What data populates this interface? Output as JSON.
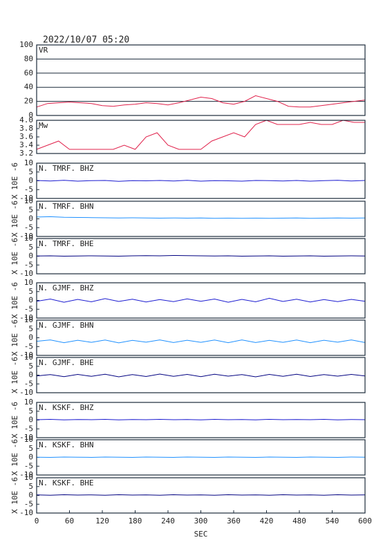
{
  "title": "2022/10/07  05:20",
  "y_unit_label": "X 10E -6",
  "chart_data": [
    {
      "type": "line",
      "title": "VR",
      "xlim": [
        0,
        600
      ],
      "ylim": [
        0,
        100
      ],
      "yticks": [
        0,
        20,
        40,
        60,
        80,
        100
      ],
      "grid": true,
      "x": [
        0,
        20,
        40,
        60,
        80,
        100,
        120,
        140,
        160,
        180,
        200,
        220,
        240,
        260,
        280,
        300,
        320,
        340,
        360,
        380,
        400,
        420,
        440,
        460,
        480,
        500,
        520,
        540,
        560,
        580,
        600
      ],
      "series": [
        {
          "name": "VR",
          "color": "#e0204a",
          "values": [
            12,
            17,
            18,
            19,
            18,
            17,
            14,
            13,
            15,
            16,
            18,
            17,
            15,
            18,
            22,
            26,
            24,
            18,
            16,
            20,
            28,
            24,
            20,
            13,
            12,
            12,
            14,
            16,
            18,
            20,
            22
          ]
        }
      ]
    },
    {
      "type": "line",
      "title": "Mw",
      "xlim": [
        0,
        600
      ],
      "ylim": [
        3.2,
        4.0
      ],
      "grid": false,
      "yticks": [
        {
          "value": 3.2,
          "label": "3.2"
        },
        {
          "value": 3.4,
          "label": "3.4"
        },
        {
          "value": 3.6,
          "label": "3.6"
        },
        {
          "value": 3.8,
          "label": "3.8"
        },
        {
          "value": 4,
          "label": "4.0"
        }
      ],
      "x": [
        0,
        20,
        40,
        60,
        80,
        100,
        120,
        140,
        160,
        180,
        200,
        220,
        240,
        260,
        280,
        300,
        320,
        340,
        360,
        380,
        400,
        420,
        440,
        460,
        480,
        500,
        520,
        540,
        560,
        580,
        600
      ],
      "series": [
        {
          "name": "Mw",
          "color": "#e0204a",
          "values": [
            3.3,
            3.4,
            3.5,
            3.3,
            3.3,
            3.3,
            3.3,
            3.3,
            3.4,
            3.3,
            3.6,
            3.7,
            3.4,
            3.3,
            3.3,
            3.3,
            3.5,
            3.6,
            3.7,
            3.6,
            3.9,
            4.0,
            3.9,
            3.9,
            3.9,
            3.95,
            3.9,
            3.9,
            4.0,
            3.95,
            3.95
          ]
        }
      ]
    },
    {
      "type": "line",
      "title": "N. TMRF. BHZ",
      "xlim": [
        0,
        600
      ],
      "ylim": [
        -10,
        10
      ],
      "yticks": [
        -10,
        -5,
        0,
        5,
        10
      ],
      "grid": false,
      "x": [
        0,
        25,
        50,
        75,
        100,
        125,
        150,
        175,
        200,
        225,
        250,
        275,
        300,
        325,
        350,
        375,
        400,
        425,
        450,
        475,
        500,
        525,
        550,
        575,
        600
      ],
      "series": [
        {
          "name": "N. TMRF. BHZ",
          "color": "#1a1ad0",
          "values": [
            0.2,
            -0.1,
            0.3,
            -0.2,
            0.1,
            0.2,
            -0.3,
            0.1,
            0,
            0.2,
            -0.1,
            0.3,
            -0.2,
            0.1,
            0,
            -0.2,
            0.2,
            0.1,
            -0.1,
            0.2,
            -0.2,
            0.1,
            0.3,
            -0.1,
            0.2
          ]
        }
      ]
    },
    {
      "type": "line",
      "title": "N. TMRF. BHN",
      "xlim": [
        0,
        600
      ],
      "ylim": [
        -10,
        10
      ],
      "yticks": [
        -10,
        -5,
        0,
        5,
        10
      ],
      "grid": false,
      "x": [
        0,
        25,
        50,
        75,
        100,
        125,
        150,
        175,
        200,
        225,
        250,
        275,
        300,
        325,
        350,
        375,
        400,
        425,
        450,
        475,
        500,
        525,
        550,
        575,
        600
      ],
      "series": [
        {
          "name": "N. TMRF. BHN",
          "color": "#1e90ff",
          "values": [
            1.0,
            1.2,
            0.9,
            0.8,
            0.7,
            0.6,
            0.5,
            0.6,
            0.5,
            0.4,
            0.5,
            0.4,
            0.5,
            0.3,
            0.4,
            0.3,
            0.4,
            0.3,
            0.4,
            0.5,
            0.3,
            0.4,
            0.5,
            0.4,
            0.5
          ]
        }
      ]
    },
    {
      "type": "line",
      "title": "N. TMRF. BHE",
      "xlim": [
        0,
        600
      ],
      "ylim": [
        -10,
        10
      ],
      "yticks": [
        -10,
        -5,
        0,
        5,
        10
      ],
      "grid": false,
      "x": [
        0,
        25,
        50,
        75,
        100,
        125,
        150,
        175,
        200,
        225,
        250,
        275,
        300,
        325,
        350,
        375,
        400,
        425,
        450,
        475,
        500,
        525,
        550,
        575,
        600
      ],
      "series": [
        {
          "name": "N. TMRF. BHE",
          "color": "#000080",
          "values": [
            0.1,
            0.2,
            0,
            0.1,
            0.2,
            0.1,
            0,
            0.2,
            0.3,
            0.2,
            0.4,
            0.3,
            0.2,
            0.1,
            0.2,
            0,
            0.1,
            0.2,
            0,
            0.1,
            0.2,
            0,
            0.1,
            0.2,
            0.1
          ]
        }
      ]
    },
    {
      "type": "line",
      "title": "N. GJMF. BHZ",
      "xlim": [
        0,
        600
      ],
      "ylim": [
        -10,
        10
      ],
      "yticks": [
        -10,
        -5,
        0,
        5,
        10
      ],
      "grid": false,
      "x": [
        0,
        25,
        50,
        75,
        100,
        125,
        150,
        175,
        200,
        225,
        250,
        275,
        300,
        325,
        350,
        375,
        400,
        425,
        450,
        475,
        500,
        525,
        550,
        575,
        600
      ],
      "series": [
        {
          "name": "N. GJMF. BHZ",
          "color": "#1a1ad0",
          "values": [
            -0.5,
            0.8,
            -1.0,
            0.6,
            -0.8,
            1.0,
            -0.6,
            0.7,
            -0.9,
            0.5,
            -0.7,
            0.9,
            -0.5,
            0.8,
            -1.0,
            0.6,
            -0.8,
            1.2,
            -0.6,
            0.7,
            -0.9,
            0.5,
            -0.7,
            0.6,
            -0.5
          ]
        }
      ]
    },
    {
      "type": "line",
      "title": "N. GJMF. BHN",
      "xlim": [
        0,
        600
      ],
      "ylim": [
        -10,
        10
      ],
      "yticks": [
        -10,
        -5,
        0,
        5,
        10
      ],
      "grid": false,
      "x": [
        0,
        25,
        50,
        75,
        100,
        125,
        150,
        175,
        200,
        225,
        250,
        275,
        300,
        325,
        350,
        375,
        400,
        425,
        450,
        475,
        500,
        525,
        550,
        575,
        600
      ],
      "series": [
        {
          "name": "N. GJMF. BHN",
          "color": "#1e90ff",
          "values": [
            -2.0,
            -1.2,
            -2.8,
            -1.4,
            -2.6,
            -1.3,
            -2.9,
            -1.5,
            -2.5,
            -1.2,
            -2.7,
            -1.4,
            -2.6,
            -1.3,
            -2.8,
            -1.2,
            -2.7,
            -1.5,
            -2.6,
            -1.3,
            -2.8,
            -1.4,
            -2.5,
            -1.2,
            -2.7
          ]
        }
      ]
    },
    {
      "type": "line",
      "title": "N. GJMF. BHE",
      "xlim": [
        0,
        600
      ],
      "ylim": [
        -10,
        10
      ],
      "yticks": [
        -10,
        -5,
        0,
        5,
        10
      ],
      "grid": false,
      "x": [
        0,
        25,
        50,
        75,
        100,
        125,
        150,
        175,
        200,
        225,
        250,
        275,
        300,
        325,
        350,
        375,
        400,
        425,
        450,
        475,
        500,
        525,
        550,
        575,
        600
      ],
      "series": [
        {
          "name": "N. GJMF. BHE",
          "color": "#000080",
          "values": [
            -0.5,
            0.3,
            -0.9,
            0.4,
            -0.7,
            0.5,
            -1.0,
            0.3,
            -0.8,
            0.6,
            -0.7,
            0.4,
            -0.9,
            0.5,
            -0.6,
            0.3,
            -1.0,
            0.4,
            -0.7,
            0.5,
            -0.8,
            0.3,
            -0.6,
            0.4,
            -0.5
          ]
        }
      ]
    },
    {
      "type": "line",
      "title": "N. KSKF. BHZ",
      "xlim": [
        0,
        600
      ],
      "ylim": [
        -10,
        10
      ],
      "yticks": [
        -10,
        -5,
        0,
        5,
        10
      ],
      "grid": false,
      "x": [
        0,
        25,
        50,
        75,
        100,
        125,
        150,
        175,
        200,
        225,
        250,
        275,
        300,
        325,
        350,
        375,
        400,
        425,
        450,
        475,
        500,
        525,
        550,
        575,
        600
      ],
      "series": [
        {
          "name": "N. KSKF. BHZ",
          "color": "#1a1ad0",
          "values": [
            0.2,
            0.4,
            0.1,
            0.3,
            0.2,
            0.4,
            0.1,
            0.3,
            0.2,
            0.4,
            0.2,
            0.3,
            0.1,
            0.4,
            0.2,
            0.3,
            0.1,
            0.4,
            0.2,
            0.3,
            0.2,
            0.4,
            0.1,
            0.3,
            0.2
          ]
        }
      ]
    },
    {
      "type": "line",
      "title": "N. KSKF. BHN",
      "xlim": [
        0,
        600
      ],
      "ylim": [
        -10,
        10
      ],
      "yticks": [
        -10,
        -5,
        0,
        5,
        10
      ],
      "grid": false,
      "x": [
        0,
        25,
        50,
        75,
        100,
        125,
        150,
        175,
        200,
        225,
        250,
        275,
        300,
        325,
        350,
        375,
        400,
        425,
        450,
        475,
        500,
        525,
        550,
        575,
        600
      ],
      "series": [
        {
          "name": "N. KSKF. BHN",
          "color": "#1e90ff",
          "values": [
            0.1,
            0,
            0.2,
            0.1,
            0,
            0.2,
            0.1,
            0,
            0.2,
            0.1,
            0,
            0.2,
            0.1,
            0,
            0.2,
            0.1,
            0,
            0.2,
            0.1,
            0,
            0.2,
            0.1,
            0,
            0.2,
            0.1
          ]
        }
      ]
    },
    {
      "type": "line",
      "title": "N. KSKF. BHE",
      "xlim": [
        0,
        600
      ],
      "ylim": [
        -10,
        10
      ],
      "yticks": [
        -10,
        -5,
        0,
        5,
        10
      ],
      "grid": false,
      "x": [
        0,
        25,
        50,
        75,
        100,
        125,
        150,
        175,
        200,
        225,
        250,
        275,
        300,
        325,
        350,
        375,
        400,
        425,
        450,
        475,
        500,
        525,
        550,
        575,
        600
      ],
      "xticks": [
        0,
        60,
        120,
        180,
        240,
        300,
        360,
        420,
        480,
        540,
        600
      ],
      "x_label": "SEC",
      "series": [
        {
          "name": "N. KSKF. BHE",
          "color": "#000080",
          "values": [
            0.3,
            0.1,
            0.4,
            0.2,
            0.3,
            0.1,
            0.4,
            0.2,
            0.3,
            0.1,
            0.4,
            0.2,
            0.3,
            0.1,
            0.4,
            0.2,
            0.3,
            0.1,
            0.4,
            0.2,
            0.3,
            0.1,
            0.4,
            0.2,
            0.3
          ]
        }
      ]
    }
  ]
}
